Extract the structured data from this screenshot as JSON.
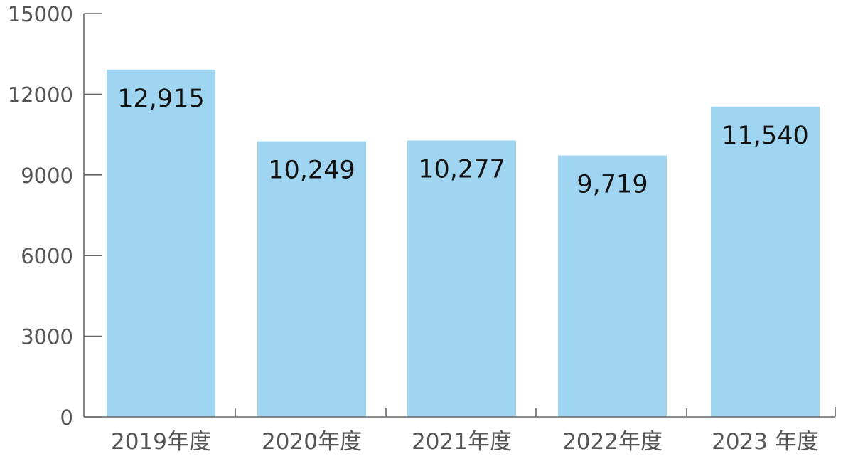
{
  "chart_data": {
    "type": "bar",
    "categories": [
      "2019年度",
      "2020年度",
      "2021年度",
      "2022年度",
      "2023 年度"
    ],
    "values": [
      12915,
      10249,
      10277,
      9719,
      11540
    ],
    "data_labels": [
      "12,915",
      "10,249",
      "10,277",
      "9,719",
      "11,540"
    ],
    "y_ticks": [
      0,
      3000,
      6000,
      9000,
      12000,
      15000
    ],
    "ylim": [
      0,
      15000
    ],
    "title": "",
    "xlabel": "",
    "ylabel": "",
    "grid": false,
    "colors": {
      "bar": "#9fd5f1",
      "axis": "#666666",
      "tick_label": "#555555",
      "data_label": "#111111"
    }
  }
}
